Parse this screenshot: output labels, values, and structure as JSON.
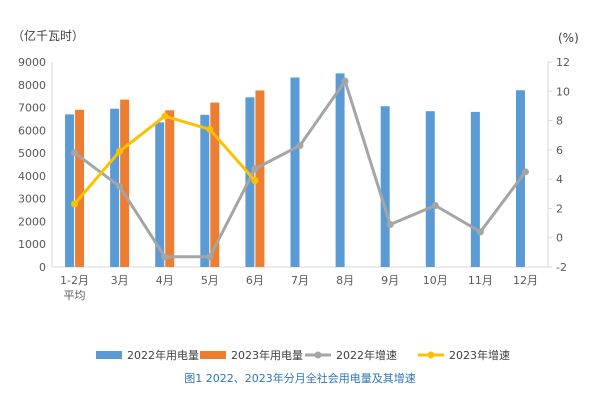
{
  "chart_data": {
    "type": "bar",
    "title": "",
    "caption": "图1  2022、2023年分月全社会用电量及其增速",
    "left_axis_unit": "（亿千瓦时）",
    "right_axis_unit": "(%)",
    "ylim": [
      0,
      9000
    ],
    "y_ticks": [
      "0",
      "1000",
      "2000",
      "3000",
      "4000",
      "5000",
      "6000",
      "7000",
      "8000",
      "9000"
    ],
    "y2lim": [
      -2,
      12
    ],
    "y2_ticks": [
      "-2",
      "0",
      "2",
      "4",
      "6",
      "8",
      "10",
      "12"
    ],
    "categories": [
      "1-2月平均",
      "3月",
      "4月",
      "5月",
      "6月",
      "7月",
      "8月",
      "9月",
      "10月",
      "11月",
      "12月"
    ],
    "category_labels": [
      [
        "1-2月",
        "平均"
      ],
      [
        "3月"
      ],
      [
        "4月"
      ],
      [
        "5月"
      ],
      [
        "6月"
      ],
      [
        "7月"
      ],
      [
        "8月"
      ],
      [
        "9月"
      ],
      [
        "10月"
      ],
      [
        "11月"
      ],
      [
        "12月"
      ]
    ],
    "series": [
      {
        "name": "2022年用电量",
        "kind": "bar",
        "axis": "left",
        "color": "#5b9bd5",
        "values": [
          6700,
          6950,
          6350,
          6680,
          7450,
          8320,
          8500,
          7060,
          6840,
          6810,
          7760
        ]
      },
      {
        "name": "2023年用电量",
        "kind": "bar",
        "axis": "left",
        "color": "#ed7d31",
        "values": [
          6900,
          7350,
          6880,
          7220,
          7750,
          null,
          null,
          null,
          null,
          null,
          null
        ]
      },
      {
        "name": "2022年增速",
        "kind": "line",
        "axis": "right",
        "color": "#a5a5a5",
        "values": [
          5.8,
          3.5,
          -1.3,
          -1.3,
          4.7,
          6.3,
          10.7,
          0.9,
          2.2,
          0.4,
          4.5
        ]
      },
      {
        "name": "2023年增速",
        "kind": "line",
        "axis": "right",
        "color": "#ffc000",
        "values": [
          2.3,
          5.9,
          8.3,
          7.4,
          3.9,
          null,
          null,
          null,
          null,
          null,
          null
        ]
      }
    ],
    "legend_position": "bottom",
    "grid": false
  }
}
